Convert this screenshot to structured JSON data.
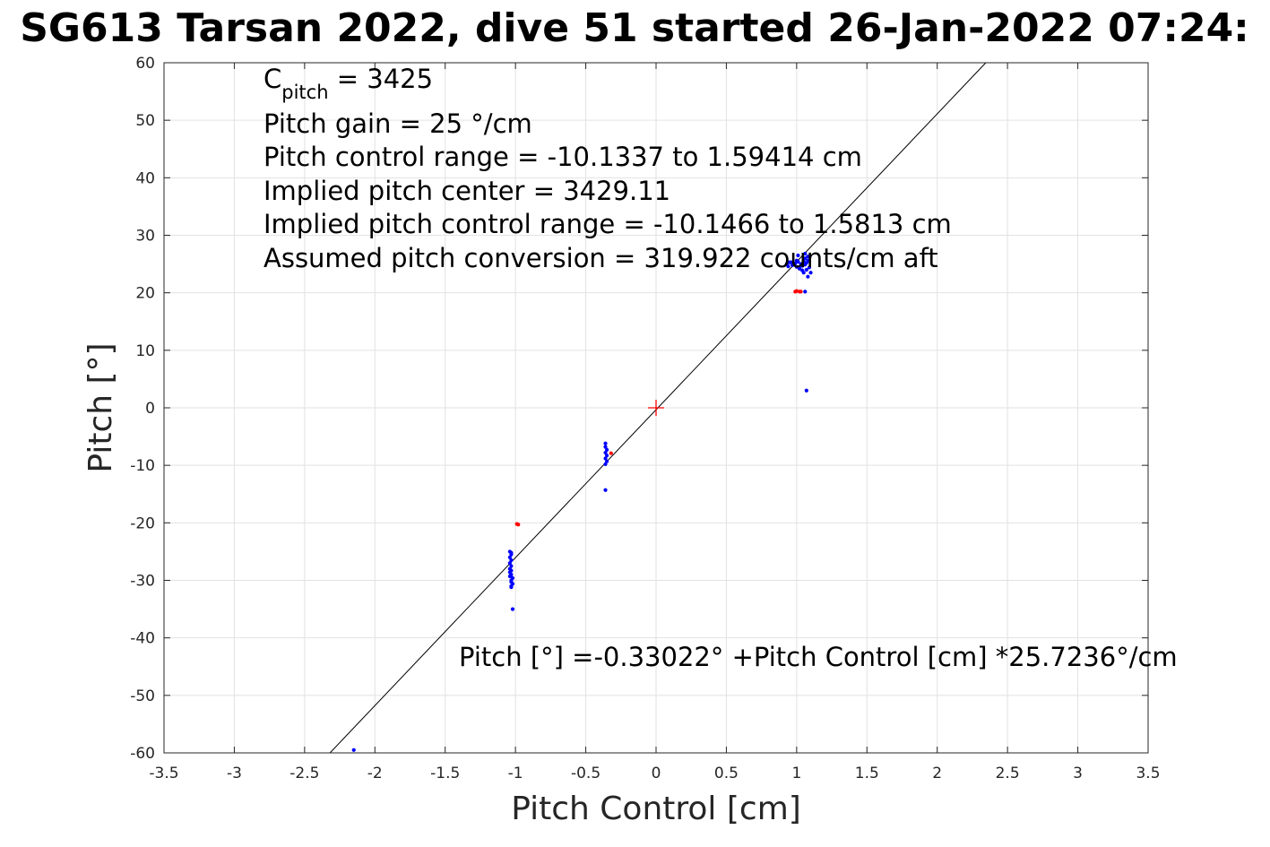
{
  "chart_data": {
    "type": "scatter",
    "title": "SG613 Tarsan 2022, dive 51 started 26-Jan-2022 07:24:",
    "xlabel": "Pitch Control [cm]",
    "ylabel": "Pitch [°]",
    "xlim": [
      -3.5,
      3.5
    ],
    "ylim": [
      -60,
      60
    ],
    "xticks": [
      -3.5,
      -3,
      -2.5,
      -2,
      -1.5,
      -1,
      -0.5,
      0,
      0.5,
      1,
      1.5,
      2,
      2.5,
      3,
      3.5
    ],
    "xtick_labels": [
      "-3.5",
      "-3",
      "-2.5",
      "-2",
      "-1.5",
      "-1",
      "-0.5",
      "0",
      "0.5",
      "1",
      "1.5",
      "2",
      "2.5",
      "3",
      "3.5"
    ],
    "yticks": [
      -60,
      -50,
      -40,
      -30,
      -20,
      -10,
      0,
      10,
      20,
      30,
      40,
      50,
      60
    ],
    "ytick_labels": [
      "-60",
      "-50",
      "-40",
      "-30",
      "-20",
      "-10",
      "0",
      "10",
      "20",
      "30",
      "40",
      "50",
      "60"
    ],
    "grid": true,
    "fit_line": {
      "intercept": -0.33022,
      "slope": 25.7236,
      "color": "#000000"
    },
    "center_marker": {
      "x": 0,
      "y": 0,
      "color": "#ff0000"
    },
    "annotations": {
      "c_pitch_main": "C",
      "c_pitch_sub": "pitch",
      "c_pitch_value": " = 3425",
      "pitch_gain": "Pitch gain = 25 °/cm",
      "control_range": "Pitch control range = -10.1337 to 1.59414 cm",
      "implied_center": "Implied pitch center = 3429.11",
      "implied_range": "Implied pitch control range = -10.1466 to 1.5813 cm",
      "conversion": "Assumed pitch conversion = 319.922 counts/cm aft",
      "fit_equation": "Pitch [°] =-0.33022° +Pitch Control [cm] *25.7236°/cm"
    },
    "series": [
      {
        "color": "#0000ff",
        "x": [
          -2.15,
          -1.04,
          -1.03,
          -1.04,
          -1.03,
          -1.04,
          -1.03,
          -1.04,
          -1.03,
          -1.04,
          -1.03,
          -1.04,
          -1.02,
          -1.03,
          -1.03,
          -1.02,
          -1.03,
          -1.03,
          -1.02,
          -1.03,
          -0.36,
          -0.36,
          -0.35,
          -0.36,
          -0.35,
          -0.36,
          -0.35,
          -0.36,
          -0.36,
          0.93,
          0.95,
          0.97,
          0.99,
          1.0,
          1.01,
          1.02,
          1.03,
          1.04,
          1.05,
          1.06,
          1.07,
          1.08,
          1.09,
          0.94,
          0.96,
          0.98,
          1.0,
          1.02,
          1.04,
          1.06,
          1.08,
          1.01,
          1.05,
          1.07,
          1.1,
          1.08,
          1.06,
          1.07,
          1.06
        ],
        "y": [
          -59.5,
          -25,
          -25.5,
          -26,
          -26.5,
          -27,
          -27.5,
          -28,
          -28.3,
          -28.6,
          -29,
          -29.3,
          -29.6,
          -30,
          -30.3,
          -30.6,
          -31,
          -31.2,
          -35,
          -25.2,
          -6.2,
          -6.8,
          -7.3,
          -7.8,
          -8.3,
          -8.8,
          -9.3,
          -9.8,
          -14.3,
          25,
          25.3,
          24.8,
          25.1,
          24.5,
          25.4,
          24.2,
          25,
          24.7,
          25.5,
          24.9,
          25.2,
          25.6,
          24.4,
          24.6,
          25.3,
          24.9,
          25.6,
          24.3,
          23.9,
          26,
          26.3,
          26.5,
          23.5,
          24,
          23.5,
          22.8,
          20.2,
          3.0,
          26.8
        ]
      },
      {
        "color": "#ff0000",
        "x": [
          -0.99,
          -0.98,
          -0.32,
          0.99,
          1.0,
          1.02,
          1.03
        ],
        "y": [
          -20.2,
          -20.3,
          -7.9,
          20.2,
          20.3,
          20.2,
          20.2
        ]
      }
    ]
  }
}
